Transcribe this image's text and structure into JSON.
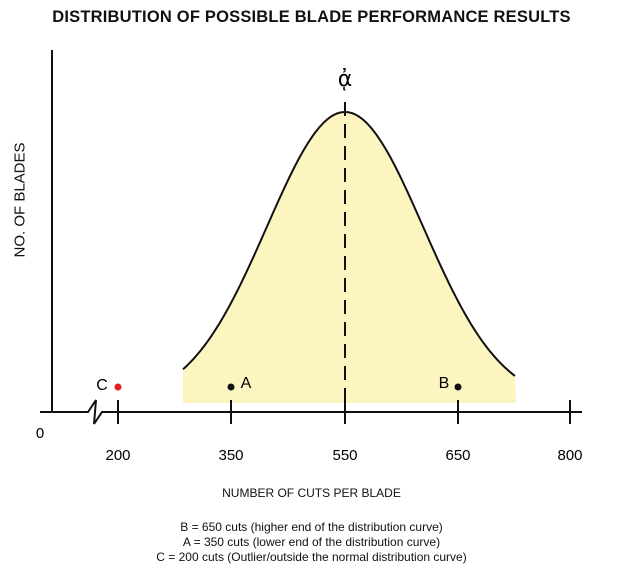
{
  "title": "DISTRIBUTION OF POSSIBLE BLADE PERFORMANCE RESULTS",
  "y_axis_label": "NO. OF BLADES",
  "x_axis_label": "NUMBER OF CUTS PER BLADE",
  "origin_label": "0",
  "ticks": [
    "200",
    "350",
    "550",
    "650",
    "800"
  ],
  "mean_symbol": "&#x1F80;",
  "points": [
    {
      "label": "C",
      "value": 200,
      "color": "#e02020"
    },
    {
      "label": "A",
      "value": 350,
      "color": "#111111"
    },
    {
      "label": "B",
      "value": 650,
      "color": "#111111"
    }
  ],
  "curve_fill": "#fdf5c0",
  "notes": [
    "B = 650 cuts (higher end of the distribution curve)",
    "A =  350 cuts (lower end of the distribution curve)",
    "C = 200 cuts (Outlier/outside the normal distribution curve)"
  ]
}
